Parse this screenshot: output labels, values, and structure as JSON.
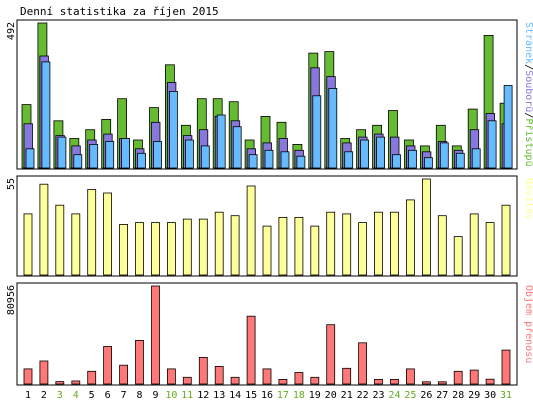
{
  "chart_data": {
    "type": "bar",
    "title": "Denní statistika za říjen 2015",
    "days": [
      "1",
      "2",
      "3",
      "4",
      "5",
      "6",
      "7",
      "8",
      "9",
      "10",
      "11",
      "12",
      "13",
      "14",
      "15",
      "16",
      "17",
      "18",
      "19",
      "20",
      "21",
      "22",
      "23",
      "24",
      "25",
      "26",
      "27",
      "28",
      "29",
      "30",
      "31"
    ],
    "weekend_days": [
      "3",
      "4",
      "10",
      "11",
      "17",
      "18",
      "24",
      "25",
      "31"
    ],
    "colors": {
      "pristupu": "#66bb33",
      "souboru": "#8877dd",
      "stranek": "#66bbff",
      "navstev": "#ffff99",
      "objem": "#ff7777",
      "weekend": "#66aa22",
      "weekday": "#000000"
    },
    "panels": [
      {
        "id": "hits",
        "max_label": "492",
        "ymax": 492,
        "legend": {
          "stranek": "Stránek",
          "sep1": "/",
          "souboru": "Souborů",
          "sep2": "/",
          "pristupu": "Přístupů"
        },
        "series": [
          {
            "key": "pristupu",
            "values": [
              215,
              492,
              160,
              100,
              130,
              165,
              235,
              95,
              205,
              350,
              145,
              235,
              235,
              225,
              95,
              175,
              155,
              80,
              390,
              395,
              100,
              130,
              145,
              195,
              95,
              75,
              145,
              75,
              200,
              450,
              220
            ]
          },
          {
            "key": "souboru",
            "values": [
              150,
              380,
              110,
              75,
              95,
              115,
              100,
              65,
              155,
              290,
              110,
              130,
              175,
              160,
              65,
              85,
              100,
              60,
              340,
              310,
              85,
              105,
              115,
              105,
              75,
              55,
              90,
              60,
              130,
              185,
              150
            ]
          },
          {
            "key": "stranek",
            "values": [
              65,
              360,
              105,
              45,
              80,
              90,
              100,
              50,
              90,
              260,
              95,
              75,
              180,
              140,
              45,
              60,
              55,
              40,
              245,
              270,
              55,
              95,
              105,
              45,
              60,
              35,
              85,
              50,
              65,
              160,
              280
            ]
          }
        ]
      },
      {
        "id": "visits",
        "max_label": "55",
        "ymax": 55,
        "legend": {
          "navstev": "Návštěv"
        },
        "series": [
          {
            "key": "navstev",
            "values": [
              35,
              52,
              40,
              35,
              49,
              47,
              29,
              30,
              30,
              30,
              32,
              32,
              36,
              34,
              51,
              28,
              33,
              33,
              28,
              36,
              35,
              30,
              36,
              36,
              43,
              55,
              34,
              22,
              35,
              30,
              40
            ]
          }
        ]
      },
      {
        "id": "volume",
        "max_label": "80956",
        "ymax": 80956,
        "legend": {
          "objem": "Objem přenosu"
        },
        "series": [
          {
            "key": "objem",
            "values": [
              12500,
              19000,
              2000,
              2500,
              10500,
              31000,
              15500,
              36000,
              80956,
              12500,
              5500,
              22000,
              14500,
              5500,
              56000,
              12500,
              3800,
              9500,
              5500,
              49000,
              13000,
              34000,
              3800,
              3800,
              12500,
              1800,
              1800,
              10500,
              11500,
              4000,
              28000
            ]
          }
        ]
      }
    ]
  }
}
